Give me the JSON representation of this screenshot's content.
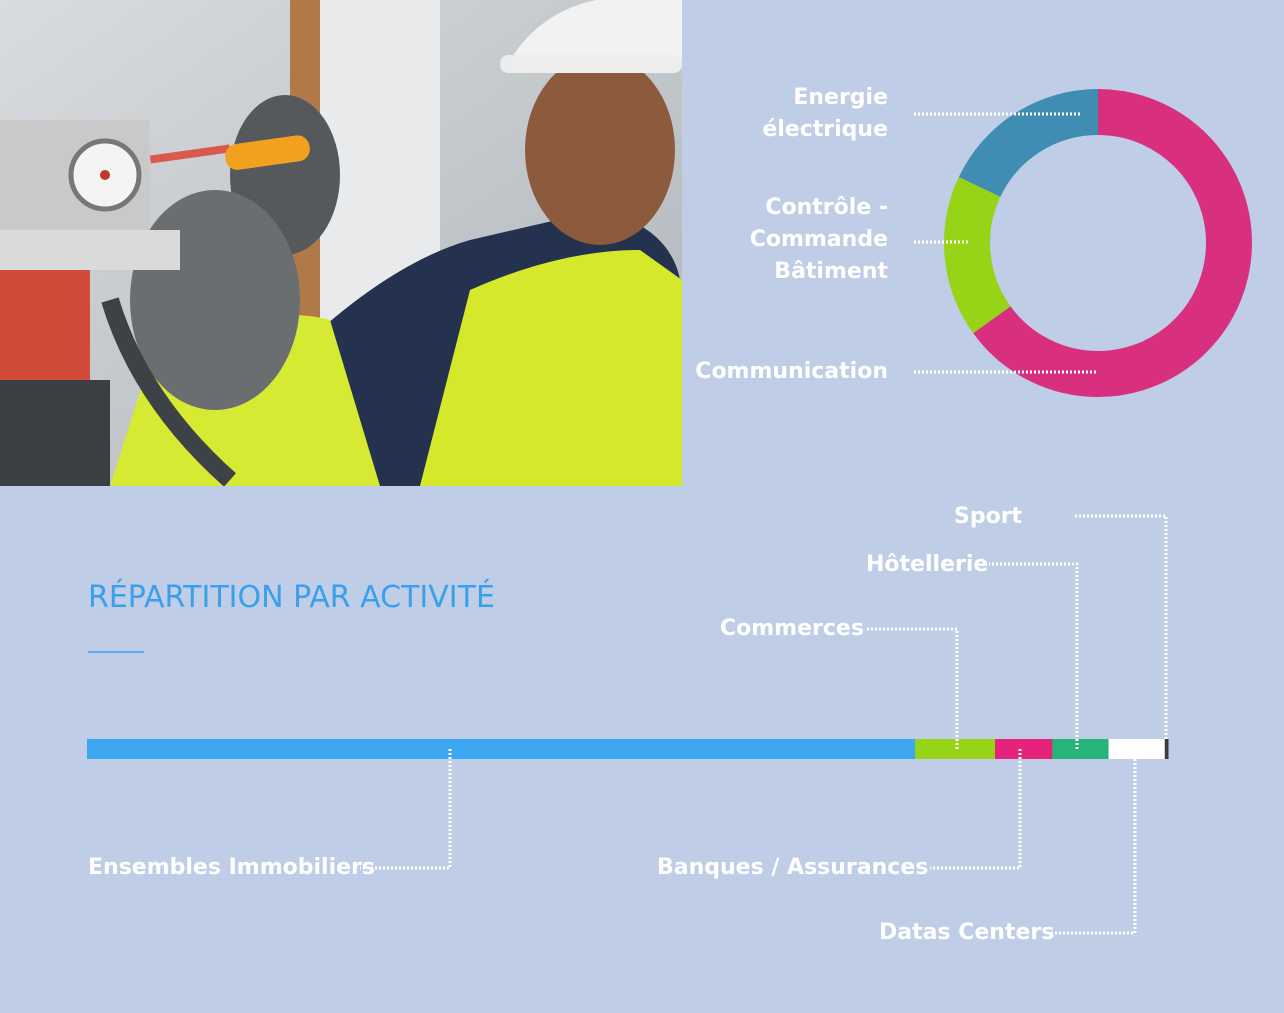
{
  "section_title": "RÉPARTITION PAR ACTIVITÉ",
  "photo": {
    "subject": "technician-with-screwdriver-and-gauge"
  },
  "chart_data": [
    {
      "type": "pie",
      "variant": "donut",
      "series": [
        {
          "name": "Energie électrique",
          "label_lines": [
            "Energie",
            "électrique"
          ],
          "value": 18,
          "color": "#3f8db3"
        },
        {
          "name": "Contrôle - Commande Bâtiment",
          "label_lines": [
            "Contrôle -",
            "Commande",
            "Bâtiment"
          ],
          "value": 17,
          "color": "#97d317"
        },
        {
          "name": "Communication",
          "label_lines": [
            "Communication"
          ],
          "value": 65,
          "color": "#d8307f"
        }
      ]
    },
    {
      "type": "bar",
      "variant": "stacked-horizontal",
      "series": [
        {
          "name": "Ensembles Immobiliers",
          "value": 76.6,
          "color": "#3da7f2"
        },
        {
          "name": "Commerces",
          "value": 7.4,
          "color": "#97d317"
        },
        {
          "name": "Banques / Assurances",
          "value": 5.3,
          "color": "#e6237b"
        },
        {
          "name": "Hôtellerie",
          "value": 5.2,
          "color": "#25b47a"
        },
        {
          "name": "Datas Centers",
          "value": 5.2,
          "color": "#ffffff"
        },
        {
          "name": "Sport",
          "value": 0.3,
          "color": "#3b3b3b"
        }
      ]
    }
  ]
}
